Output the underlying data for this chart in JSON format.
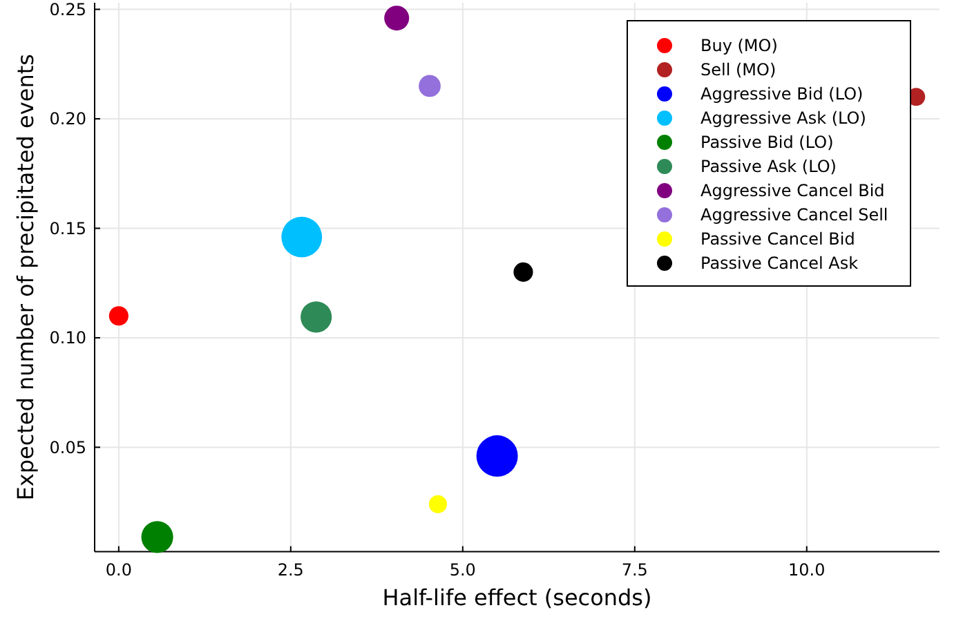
{
  "chart_data": {
    "type": "bubble",
    "xlabel": "Half-life effect (seconds)",
    "ylabel": "Expected number of precipitated events",
    "xlim": [
      -0.35,
      11.93
    ],
    "xticks": [
      {
        "value": 0,
        "label": "0.0"
      },
      {
        "value": 2.5,
        "label": "2.5"
      },
      {
        "value": 5,
        "label": "5.0"
      },
      {
        "value": 7.5,
        "label": "7.5"
      },
      {
        "value": 10,
        "label": "10.0"
      }
    ],
    "ylim": [
      0.0023,
      0.253
    ],
    "yticks": [
      0.05,
      {
        "value": 0.1,
        "label": "0.10"
      },
      0.15,
      {
        "value": 0.2,
        "label": "0.20"
      },
      0.25
    ],
    "grid": true,
    "legend": "top right",
    "series": [
      {
        "name": "Buy (MO)",
        "color": "#ff0000",
        "x": [
          0
        ],
        "values": [
          0.11
        ],
        "sizes": [
          0.22
        ]
      },
      {
        "name": "Sell (MO)",
        "color": "#b22222",
        "x": [
          11.59
        ],
        "values": [
          0.21
        ],
        "sizes": [
          0.19
        ]
      },
      {
        "name": "Aggressive Bid (LO)",
        "color": "#0000ff",
        "x": [
          5.5
        ],
        "values": [
          0.046
        ],
        "sizes": [
          1
        ]
      },
      {
        "name": "Aggressive Ask (LO)",
        "color": "#00bfff",
        "x": [
          2.66
        ],
        "values": [
          0.146
        ],
        "sizes": [
          0.96
        ]
      },
      {
        "name": "Passive Bid (LO)",
        "color": "#008000",
        "x": [
          0.56
        ],
        "values": [
          0.009
        ],
        "sizes": [
          0.59
        ]
      },
      {
        "name": "Passive Ask (LO)",
        "color": "#2e8b57",
        "x": [
          2.87
        ],
        "values": [
          0.1095
        ],
        "sizes": [
          0.57
        ]
      },
      {
        "name": "Aggressive Cancel Bid",
        "color": "#800080",
        "x": [
          4.04
        ],
        "values": [
          0.246
        ],
        "sizes": [
          0.36
        ]
      },
      {
        "name": "Aggressive Cancel Sell",
        "color": "#9370db",
        "x": [
          4.52
        ],
        "values": [
          0.215
        ],
        "sizes": [
          0.28
        ]
      },
      {
        "name": "Passive Cancel Bid",
        "color": "#ffff00",
        "x": [
          4.64
        ],
        "values": [
          0.024
        ],
        "sizes": [
          0.19
        ]
      },
      {
        "name": "Passive Cancel Ask",
        "color": "#000000",
        "x": [
          5.88
        ],
        "values": [
          0.13
        ],
        "sizes": [
          0.22
        ]
      }
    ]
  }
}
